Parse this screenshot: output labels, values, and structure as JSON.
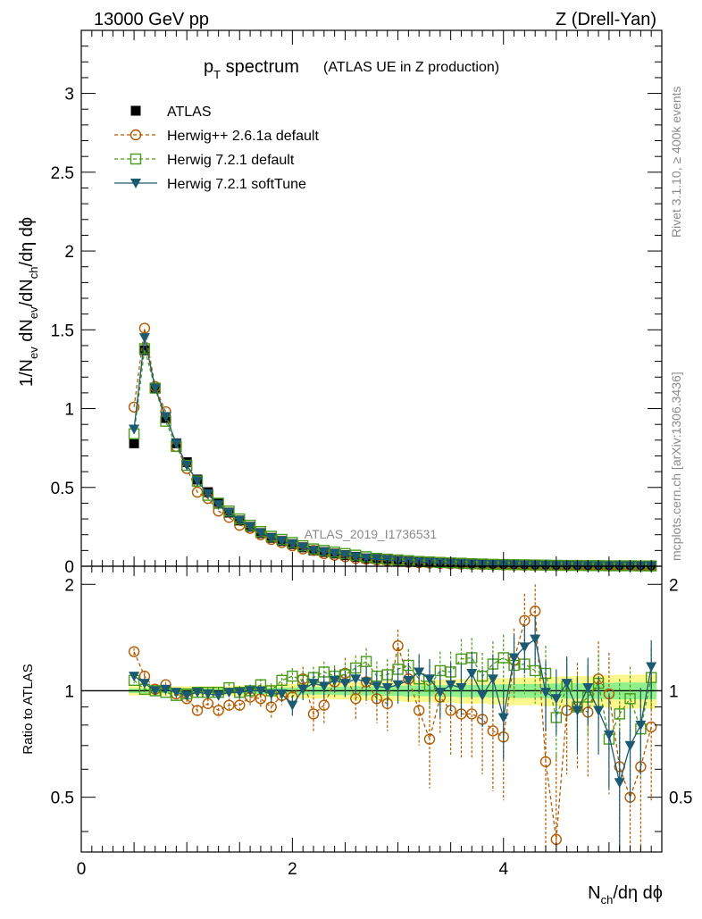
{
  "header": {
    "energy": "13000 GeV pp",
    "process": "Z (Drell-Yan)"
  },
  "side_labels": {
    "rivet": "Rivet 3.1.10, ≥ 400k events",
    "mcplots": "mcplots.cern.ch [arXiv:1306.3436]"
  },
  "chart_data": [
    {
      "panel": "main",
      "type": "scatter",
      "title": "p_T spectrum",
      "title_note": "(ATLAS UE in Z production)",
      "watermark": "ATLAS_2019_I1736531",
      "ylabel": "1/N_ev dN_ev/dN_ch/dη dϕ",
      "xlabel": "N_ch/dη dϕ",
      "xlim": [
        0,
        5.5
      ],
      "ylim": [
        0,
        3.4
      ],
      "x_ticks": [
        "0",
        "2",
        "4"
      ],
      "y_ticks": [
        "0",
        "0.5",
        "1",
        "1.5",
        "2",
        "2.5",
        "3"
      ],
      "legend_position": "top-left",
      "x": [
        0.5,
        0.6,
        0.7,
        0.8,
        0.9,
        1.0,
        1.1,
        1.2,
        1.3,
        1.4,
        1.5,
        1.6,
        1.7,
        1.8,
        1.9,
        2.0,
        2.1,
        2.2,
        2.3,
        2.4,
        2.5,
        2.6,
        2.7,
        2.8,
        2.9,
        3.0,
        3.1,
        3.2,
        3.3,
        3.4,
        3.5,
        3.6,
        3.7,
        3.8,
        3.9,
        4.0,
        4.1,
        4.2,
        4.3,
        4.4,
        4.5,
        4.6,
        4.7,
        4.8,
        4.9,
        5.0,
        5.1,
        5.2,
        5.3,
        5.4
      ],
      "series": [
        {
          "name": "ATLAS",
          "color": "#000000",
          "marker": "square-filled",
          "line": "none",
          "values": [
            0.78,
            1.37,
            1.13,
            0.94,
            0.78,
            0.66,
            0.55,
            0.47,
            0.4,
            0.34,
            0.29,
            0.25,
            0.21,
            0.18,
            0.16,
            0.14,
            0.12,
            0.1,
            0.09,
            0.08,
            0.07,
            0.06,
            0.05,
            0.045,
            0.04,
            0.035,
            0.03,
            0.027,
            0.024,
            0.021,
            0.018,
            0.016,
            0.014,
            0.012,
            0.011,
            0.01,
            0.009,
            0.008,
            0.007,
            0.006,
            0.005,
            0.005,
            0.004,
            0.004,
            0.003,
            0.003,
            0.003,
            0.002,
            0.002,
            0.002
          ]
        },
        {
          "name": "Herwig++ 2.6.1a default",
          "color": "#b35a00",
          "marker": "circle-open",
          "line": "dashed",
          "values": [
            1.01,
            1.51,
            1.14,
            0.98,
            0.76,
            0.62,
            0.47,
            0.43,
            0.35,
            0.31,
            0.26,
            0.24,
            0.2,
            0.17,
            0.15,
            0.13,
            0.11,
            0.1,
            0.08,
            0.07,
            0.06,
            0.05,
            0.045,
            0.04,
            0.035,
            0.03,
            0.025,
            0.022,
            0.02,
            0.018,
            0.015,
            0.013,
            0.012,
            0.01,
            0.009,
            0.008,
            0.007,
            0.006,
            0.005,
            0.005,
            0.004,
            0.004,
            0.003,
            0.003,
            0.003,
            0.002,
            0.002,
            0.002,
            0.002,
            0.001
          ]
        },
        {
          "name": "Herwig 7.2.1 default",
          "color": "#4a9a1a",
          "marker": "square-open",
          "line": "dashed",
          "values": [
            0.84,
            1.38,
            1.13,
            0.92,
            0.76,
            0.64,
            0.54,
            0.45,
            0.4,
            0.35,
            0.3,
            0.26,
            0.22,
            0.19,
            0.17,
            0.15,
            0.13,
            0.11,
            0.1,
            0.09,
            0.08,
            0.07,
            0.06,
            0.05,
            0.045,
            0.04,
            0.035,
            0.03,
            0.027,
            0.024,
            0.021,
            0.019,
            0.016,
            0.014,
            0.012,
            0.011,
            0.01,
            0.009,
            0.008,
            0.007,
            0.006,
            0.005,
            0.005,
            0.004,
            0.004,
            0.003,
            0.003,
            0.003,
            0.002,
            0.002
          ]
        },
        {
          "name": "Herwig 7.2.1 softTune",
          "color": "#1b5a70",
          "marker": "triangle-down-filled",
          "line": "solid",
          "values": [
            0.87,
            1.45,
            1.13,
            0.95,
            0.78,
            0.64,
            0.54,
            0.46,
            0.39,
            0.34,
            0.29,
            0.25,
            0.21,
            0.18,
            0.16,
            0.14,
            0.12,
            0.1,
            0.09,
            0.08,
            0.07,
            0.06,
            0.05,
            0.045,
            0.04,
            0.035,
            0.03,
            0.027,
            0.024,
            0.021,
            0.018,
            0.016,
            0.014,
            0.012,
            0.011,
            0.01,
            0.009,
            0.008,
            0.007,
            0.006,
            0.005,
            0.005,
            0.004,
            0.004,
            0.003,
            0.003,
            0.003,
            0.002,
            0.002,
            0.002
          ]
        }
      ]
    },
    {
      "panel": "ratio",
      "type": "scatter",
      "ylabel": "Ratio to ATLAS",
      "xlim": [
        0,
        5.5
      ],
      "ylim": [
        0.35,
        2.25
      ],
      "reference_line": 1,
      "x_ticks": [
        "0",
        "2",
        "4"
      ],
      "y_ticks": [
        "0.5",
        "1",
        "2"
      ],
      "x": [
        0.5,
        0.6,
        0.7,
        0.8,
        0.9,
        1.0,
        1.1,
        1.2,
        1.3,
        1.4,
        1.5,
        1.6,
        1.7,
        1.8,
        1.9,
        2.0,
        2.1,
        2.2,
        2.3,
        2.4,
        2.5,
        2.6,
        2.7,
        2.8,
        2.9,
        3.0,
        3.1,
        3.2,
        3.3,
        3.4,
        3.5,
        3.6,
        3.7,
        3.8,
        3.9,
        4.0,
        4.1,
        4.2,
        4.3,
        4.4,
        4.5,
        4.6,
        4.7,
        4.8,
        4.9,
        5.0,
        5.1,
        5.2,
        5.3,
        5.4
      ],
      "band_yellow_halfwidth": [
        0.03,
        0.03,
        0.03,
        0.03,
        0.03,
        0.03,
        0.03,
        0.03,
        0.03,
        0.03,
        0.035,
        0.035,
        0.04,
        0.04,
        0.045,
        0.045,
        0.05,
        0.05,
        0.05,
        0.055,
        0.055,
        0.06,
        0.06,
        0.06,
        0.065,
        0.065,
        0.07,
        0.07,
        0.07,
        0.075,
        0.075,
        0.08,
        0.08,
        0.08,
        0.085,
        0.085,
        0.09,
        0.09,
        0.09,
        0.095,
        0.095,
        0.1,
        0.1,
        0.1,
        0.105,
        0.105,
        0.11,
        0.11,
        0.11,
        0.11
      ],
      "band_green_halfwidth": [
        0.015,
        0.015,
        0.015,
        0.015,
        0.015,
        0.015,
        0.015,
        0.015,
        0.015,
        0.015,
        0.018,
        0.018,
        0.02,
        0.02,
        0.022,
        0.022,
        0.025,
        0.025,
        0.025,
        0.027,
        0.028,
        0.03,
        0.03,
        0.03,
        0.032,
        0.033,
        0.035,
        0.035,
        0.035,
        0.037,
        0.038,
        0.04,
        0.04,
        0.04,
        0.042,
        0.043,
        0.045,
        0.045,
        0.045,
        0.047,
        0.048,
        0.05,
        0.05,
        0.05,
        0.052,
        0.053,
        0.055,
        0.055,
        0.055,
        0.055
      ],
      "series": [
        {
          "name": "Herwig++ 2.6.1a default",
          "color": "#b35a00",
          "marker": "circle-open",
          "line": "dashed",
          "values": [
            1.29,
            1.1,
            1.01,
            1.04,
            0.98,
            0.95,
            0.88,
            0.92,
            0.88,
            0.91,
            0.91,
            0.96,
            0.95,
            0.9,
            0.97,
            0.96,
            1.08,
            0.86,
            0.91,
            1.06,
            1.12,
            0.95,
            1.06,
            0.95,
            0.92,
            1.34,
            1.08,
            0.88,
            0.73,
            0.96,
            0.88,
            0.86,
            0.86,
            0.83,
            0.77,
            0.74,
            1.22,
            1.58,
            1.68,
            0.63,
            0.38,
            0.88,
            0.9,
            0.87,
            1.08,
            0.98,
            0.61,
            0.5,
            0.61,
            0.79
          ],
          "errors": [
            0.03,
            0.03,
            0.02,
            0.02,
            0.02,
            0.02,
            0.03,
            0.03,
            0.04,
            0.04,
            0.04,
            0.05,
            0.05,
            0.06,
            0.06,
            0.07,
            0.09,
            0.1,
            0.1,
            0.1,
            0.12,
            0.12,
            0.14,
            0.14,
            0.15,
            0.15,
            0.15,
            0.18,
            0.2,
            0.2,
            0.22,
            0.22,
            0.22,
            0.25,
            0.25,
            0.25,
            0.28,
            0.3,
            0.32,
            0.3,
            0.28,
            0.3,
            0.3,
            0.3,
            0.3,
            0.3,
            0.3,
            0.28,
            0.3,
            0.3
          ]
        },
        {
          "name": "Herwig 7.2.1 default",
          "color": "#4a9a1a",
          "marker": "square-open",
          "line": "dashed",
          "values": [
            1.07,
            1.01,
            1.0,
            0.99,
            0.97,
            0.98,
            0.99,
            0.99,
            0.99,
            1.02,
            0.99,
            1.0,
            1.04,
            1.0,
            1.07,
            1.1,
            1.07,
            1.09,
            1.13,
            1.1,
            1.11,
            1.16,
            1.21,
            1.1,
            1.11,
            1.15,
            1.18,
            1.08,
            1.03,
            1.14,
            1.13,
            1.23,
            1.24,
            1.1,
            1.19,
            1.24,
            1.18,
            1.19,
            1.14,
            1.12,
            0.84,
            1.03,
            0.9,
            0.96,
            1.05,
            0.73,
            0.86,
            0.95,
            0.78,
            1.09
          ],
          "errors": [
            0.02,
            0.02,
            0.02,
            0.02,
            0.02,
            0.02,
            0.02,
            0.03,
            0.03,
            0.03,
            0.04,
            0.04,
            0.04,
            0.05,
            0.05,
            0.06,
            0.07,
            0.08,
            0.08,
            0.08,
            0.09,
            0.1,
            0.11,
            0.11,
            0.12,
            0.12,
            0.13,
            0.14,
            0.15,
            0.15,
            0.16,
            0.17,
            0.17,
            0.18,
            0.19,
            0.2,
            0.2,
            0.21,
            0.22,
            0.22,
            0.2,
            0.2,
            0.21,
            0.22,
            0.22,
            0.22,
            0.22,
            0.22,
            0.22,
            0.22
          ]
        },
        {
          "name": "Herwig 7.2.1 softTune",
          "color": "#1b5a70",
          "marker": "triangle-down-filled",
          "line": "solid",
          "values": [
            1.1,
            1.05,
            1.0,
            1.01,
            0.99,
            0.97,
            0.99,
            0.98,
            0.97,
            0.99,
            0.99,
            1.0,
            1.0,
            0.98,
            0.98,
            0.91,
            1.01,
            1.05,
            1.03,
            1.07,
            1.05,
            1.08,
            1.06,
            1.03,
            1.02,
            1.04,
            1.07,
            1.13,
            1.08,
            0.99,
            1.04,
            1.02,
            1.12,
            0.97,
            1.08,
            0.84,
            1.24,
            1.33,
            1.4,
            0.99,
            0.95,
            1.05,
            0.88,
            1.02,
            0.88,
            0.75,
            0.55,
            0.7,
            0.8,
            1.17
          ],
          "errors": [
            0.02,
            0.02,
            0.02,
            0.02,
            0.02,
            0.02,
            0.02,
            0.03,
            0.03,
            0.03,
            0.04,
            0.04,
            0.04,
            0.05,
            0.05,
            0.06,
            0.07,
            0.08,
            0.08,
            0.08,
            0.09,
            0.1,
            0.11,
            0.11,
            0.12,
            0.12,
            0.13,
            0.14,
            0.15,
            0.15,
            0.16,
            0.17,
            0.17,
            0.18,
            0.19,
            0.2,
            0.2,
            0.21,
            0.22,
            0.22,
            0.2,
            0.2,
            0.21,
            0.22,
            0.22,
            0.22,
            0.22,
            0.22,
            0.22,
            0.22
          ]
        }
      ]
    }
  ]
}
